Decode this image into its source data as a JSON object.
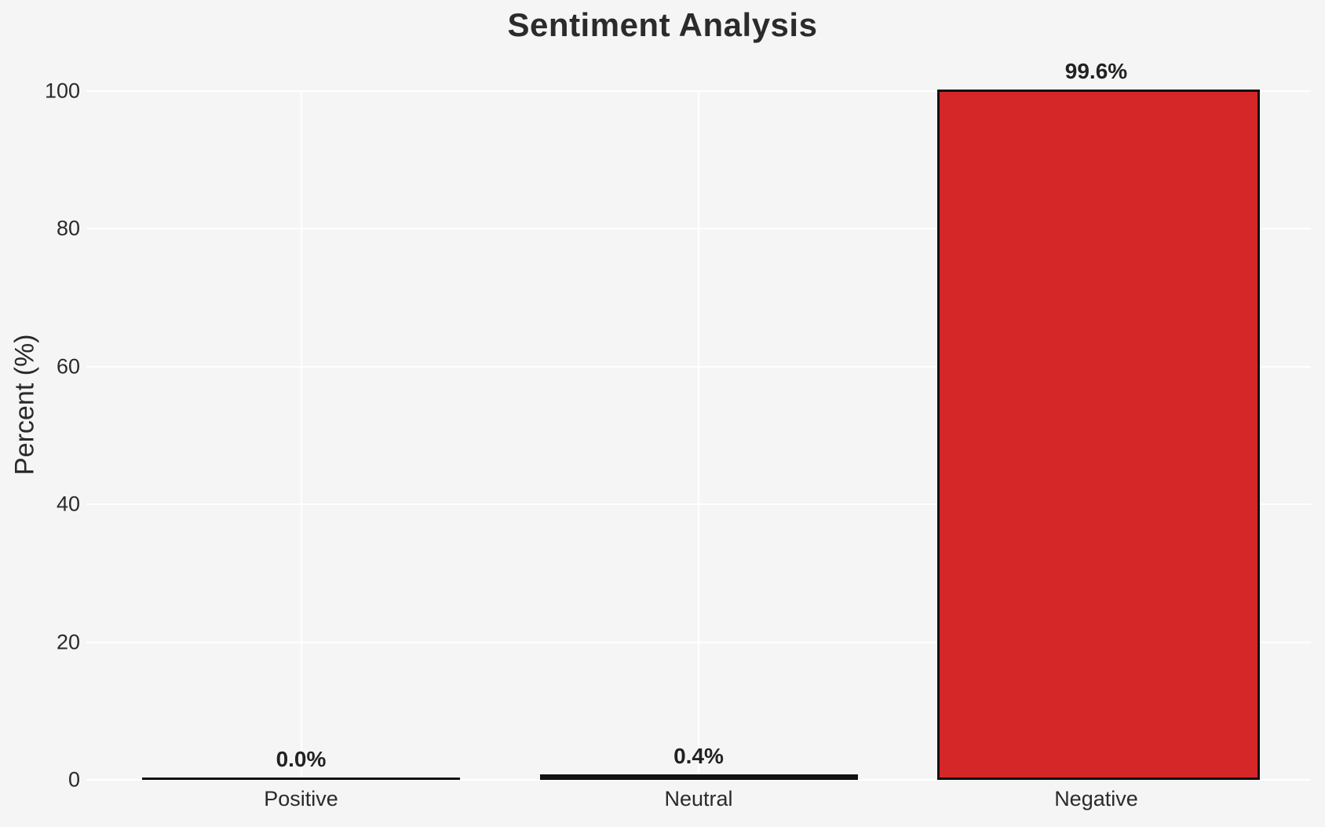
{
  "chart_data": {
    "type": "bar",
    "title": "Sentiment Analysis",
    "xlabel": "",
    "ylabel": "Percent (%)",
    "categories": [
      "Positive",
      "Neutral",
      "Negative"
    ],
    "values": [
      0.0,
      0.4,
      99.6
    ],
    "value_labels": [
      "0.0%",
      "0.4%",
      "99.6%"
    ],
    "yticks": [
      0,
      20,
      40,
      60,
      80,
      100
    ],
    "ylim": [
      0,
      100
    ],
    "grid": "on",
    "legend": "none",
    "colors": {
      "bar_fill": "#d62728",
      "bar_edge": "#111111",
      "background": "#f5f5f6",
      "gridline": "#ffffff",
      "title_text": "#2b2b2b",
      "label_text": "#2a2a2a"
    }
  }
}
